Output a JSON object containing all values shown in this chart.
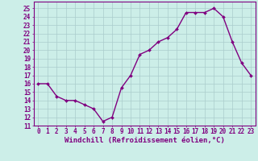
{
  "x": [
    0,
    1,
    2,
    3,
    4,
    5,
    6,
    7,
    8,
    9,
    10,
    11,
    12,
    13,
    14,
    15,
    16,
    17,
    18,
    19,
    20,
    21,
    22,
    23
  ],
  "y": [
    16,
    16,
    14.5,
    14,
    14,
    13.5,
    13,
    11.5,
    12,
    15.5,
    17,
    19.5,
    20,
    21,
    21.5,
    22.5,
    24.5,
    24.5,
    24.5,
    25,
    24,
    21,
    18.5,
    17
  ],
  "line_color": "#800080",
  "marker": "D",
  "marker_size": 2.0,
  "bg_color": "#cceee8",
  "grid_color": "#aacccc",
  "xlabel": "Windchill (Refroidissement éolien,°C)",
  "xlabel_fontsize": 6.5,
  "ylabel_ticks": [
    11,
    12,
    13,
    14,
    15,
    16,
    17,
    18,
    19,
    20,
    21,
    22,
    23,
    24,
    25
  ],
  "xlim": [
    -0.5,
    23.5
  ],
  "ylim": [
    11,
    25.8
  ],
  "xtick_labels": [
    "0",
    "1",
    "2",
    "3",
    "4",
    "5",
    "6",
    "7",
    "8",
    "9",
    "10",
    "11",
    "12",
    "13",
    "14",
    "15",
    "16",
    "17",
    "18",
    "19",
    "20",
    "21",
    "22",
    "23"
  ],
  "tick_fontsize": 5.5,
  "line_width": 1.0
}
